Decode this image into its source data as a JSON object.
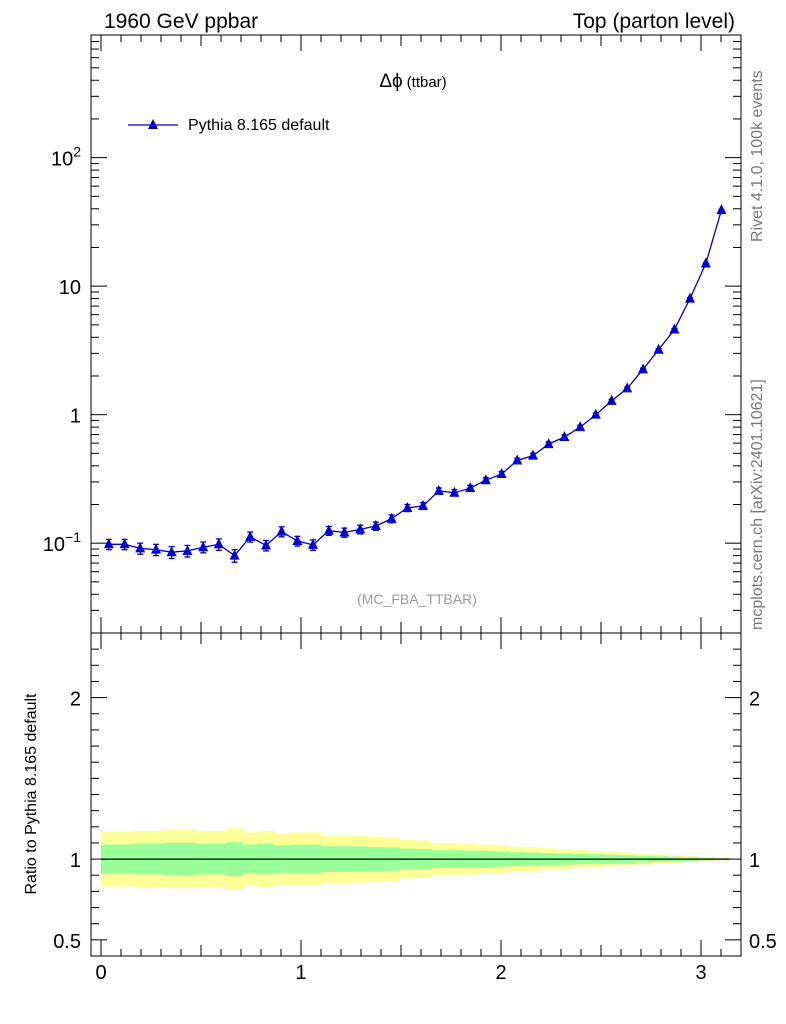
{
  "header": {
    "left": "1960 GeV ppbar",
    "right": "Top (parton level)"
  },
  "side_labels": {
    "rivet": "Rivet 4.1.0,  100k events",
    "mcplots": "mcplots.cern.ch [arXiv:2401.10621]"
  },
  "colors": {
    "series": "#0000cc",
    "band_inner": "#99ff99",
    "band_outer": "#ffff99",
    "watermark": "#999999"
  },
  "chart_data": [
    {
      "type": "line",
      "title_prefix": "Δϕ",
      "title_suffix": "(ttbar)",
      "watermark": "(MC_FBA_TTBAR)",
      "yscale": "log",
      "xlim": [
        -0.05,
        3.2
      ],
      "ylim": [
        0.02,
        900
      ],
      "y_ticks": [
        {
          "value": 0.1,
          "base": "10",
          "exp": "−1"
        },
        {
          "value": 1,
          "label": "1"
        },
        {
          "value": 10,
          "label": "10"
        },
        {
          "value": 100,
          "base": "10",
          "exp": "2"
        }
      ],
      "legend": {
        "position": "top-left",
        "label": "Pythia 8.165 default"
      },
      "series": [
        {
          "name": "Pythia 8.165 default",
          "marker": "triangle",
          "x": [
            0.039,
            0.118,
            0.196,
            0.275,
            0.353,
            0.432,
            0.511,
            0.589,
            0.668,
            0.746,
            0.825,
            0.903,
            0.982,
            1.06,
            1.139,
            1.217,
            1.296,
            1.374,
            1.453,
            1.532,
            1.61,
            1.689,
            1.767,
            1.846,
            1.924,
            2.003,
            2.081,
            2.16,
            2.238,
            2.317,
            2.396,
            2.474,
            2.553,
            2.631,
            2.71,
            2.788,
            2.867,
            2.945,
            3.024,
            3.102
          ],
          "y": [
            0.098,
            0.098,
            0.091,
            0.089,
            0.085,
            0.087,
            0.093,
            0.098,
            0.08,
            0.112,
            0.096,
            0.123,
            0.104,
            0.097,
            0.125,
            0.121,
            0.128,
            0.136,
            0.155,
            0.188,
            0.195,
            0.255,
            0.247,
            0.268,
            0.309,
            0.345,
            0.44,
            0.48,
            0.59,
            0.67,
            0.8,
            1.0,
            1.28,
            1.6,
            2.25,
            3.2,
            4.6,
            8.0,
            15.0,
            39.0
          ],
          "yerr": [
            0.009,
            0.009,
            0.009,
            0.009,
            0.009,
            0.009,
            0.009,
            0.01,
            0.009,
            0.01,
            0.009,
            0.011,
            0.009,
            0.009,
            0.01,
            0.01,
            0.01,
            0.01,
            0.011,
            0.012,
            0.012,
            0.014,
            0.014,
            0.014,
            0.015,
            0.016,
            0.019,
            0.02,
            0.022,
            0.025,
            0.028,
            0.03,
            0.035,
            0.04,
            0.05,
            0.06,
            0.08,
            0.12,
            0.2,
            0.4
          ]
        }
      ]
    },
    {
      "type": "area",
      "ylabel": "Ratio to Pythia 8.165 default",
      "xlim": [
        -0.05,
        3.2
      ],
      "ylim": [
        0.4,
        2.4
      ],
      "x_ticks": [
        0,
        1,
        2,
        3
      ],
      "y_ticks": [
        0.5,
        1,
        2
      ],
      "reference_line": 1,
      "bins_x": [
        0,
        0.0785,
        0.157,
        0.2355,
        0.314,
        0.3925,
        0.471,
        0.5495,
        0.628,
        0.7065,
        0.785,
        0.8635,
        0.942,
        1.0205,
        1.099,
        1.1775,
        1.256,
        1.3345,
        1.413,
        1.4915,
        1.57,
        1.6485,
        1.727,
        1.8055,
        1.884,
        1.9625,
        2.041,
        2.1195,
        2.198,
        2.2765,
        2.355,
        2.4335,
        2.512,
        2.5905,
        2.669,
        2.7475,
        2.826,
        2.9045,
        2.983,
        3.0615,
        3.14
      ],
      "band_inner_halfwidth": [
        0.09,
        0.09,
        0.095,
        0.095,
        0.1,
        0.1,
        0.095,
        0.095,
        0.105,
        0.09,
        0.095,
        0.085,
        0.09,
        0.09,
        0.08,
        0.08,
        0.078,
        0.075,
        0.072,
        0.065,
        0.063,
        0.055,
        0.055,
        0.053,
        0.05,
        0.047,
        0.043,
        0.041,
        0.037,
        0.035,
        0.032,
        0.03,
        0.027,
        0.025,
        0.021,
        0.018,
        0.015,
        0.011,
        0.008,
        0.005
      ],
      "band_outer_halfwidth": [
        0.17,
        0.17,
        0.175,
        0.175,
        0.18,
        0.18,
        0.175,
        0.175,
        0.19,
        0.165,
        0.175,
        0.16,
        0.165,
        0.165,
        0.15,
        0.15,
        0.145,
        0.14,
        0.135,
        0.12,
        0.115,
        0.1,
        0.1,
        0.097,
        0.09,
        0.085,
        0.077,
        0.074,
        0.067,
        0.062,
        0.056,
        0.05,
        0.045,
        0.04,
        0.034,
        0.029,
        0.024,
        0.018,
        0.013,
        0.008
      ]
    }
  ]
}
